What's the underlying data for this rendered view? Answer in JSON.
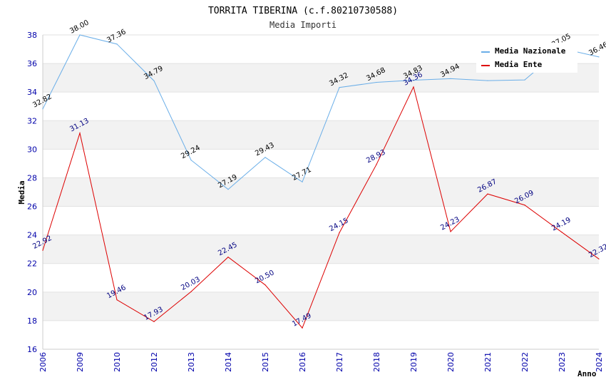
{
  "chart_data": {
    "type": "line",
    "title": "TORRITA TIBERINA (c.f.80210730588)",
    "subtitle": "Media Importi",
    "ylabel": "Media",
    "xlabel": "Anno",
    "ylim": [
      16,
      38
    ],
    "yticks": [
      16,
      18,
      20,
      22,
      24,
      26,
      28,
      30,
      32,
      34,
      36,
      38
    ],
    "categories": [
      "2006",
      "2009",
      "2010",
      "2012",
      "2013",
      "2014",
      "2015",
      "2016",
      "2017",
      "2018",
      "2019",
      "2020",
      "2021",
      "2022",
      "2023",
      "2024"
    ],
    "legend_position": "top-right",
    "grid": "horizontal bands",
    "series": [
      {
        "name": "Media Nazionale",
        "color": "#6aaee8",
        "values": [
          32.82,
          38.0,
          37.36,
          34.79,
          29.24,
          27.19,
          29.43,
          27.71,
          34.32,
          34.68,
          34.83,
          34.94,
          34.8,
          34.85,
          37.05,
          36.46
        ],
        "labels": [
          "32.82",
          "38.00",
          "37.36",
          "34.79",
          "29.24",
          "27.19",
          "29.43",
          "27.71",
          "34.32",
          "34.68",
          "34.83",
          "34.94",
          "",
          "",
          "37.05",
          "36.46"
        ]
      },
      {
        "name": "Media Ente",
        "color": "#dd0000",
        "values": [
          22.92,
          31.13,
          19.46,
          17.93,
          20.03,
          22.45,
          20.5,
          17.49,
          24.15,
          28.93,
          34.36,
          24.23,
          26.87,
          26.09,
          24.19,
          22.32
        ],
        "labels": [
          "22.92",
          "31.13",
          "19.46",
          "17.93",
          "20.03",
          "22.45",
          "20.50",
          "17.49",
          "24.15",
          "28.93",
          "34.36",
          "24.23",
          "26.87",
          "26.09",
          "24.19",
          "22.32"
        ]
      }
    ]
  }
}
